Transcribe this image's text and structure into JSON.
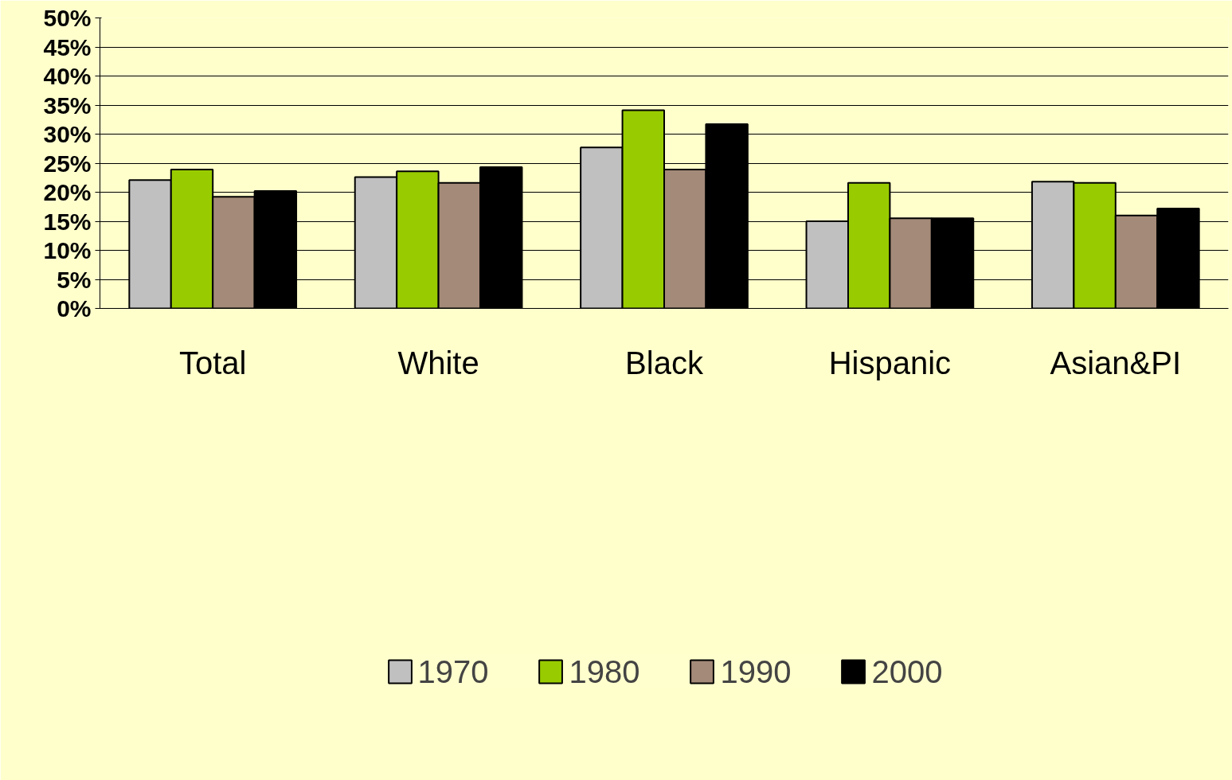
{
  "chart_data": {
    "type": "bar",
    "categories": [
      "Total",
      "White",
      "Black",
      "Hispanic",
      "Asian&PI"
    ],
    "series": [
      {
        "name": "1970",
        "color": "#c0c0c0",
        "values": [
          22.1,
          22.6,
          27.7,
          15.0,
          21.8
        ]
      },
      {
        "name": "1980",
        "color": "#99cc00",
        "values": [
          23.9,
          23.6,
          34.1,
          21.6,
          21.6
        ]
      },
      {
        "name": "1990",
        "color": "#a48a78",
        "values": [
          19.2,
          21.6,
          23.9,
          15.5,
          16.0
        ]
      },
      {
        "name": "2000",
        "color": "#000000",
        "values": [
          20.2,
          24.3,
          31.7,
          15.5,
          17.2
        ]
      }
    ],
    "ylim": [
      0,
      50
    ],
    "yticks": [
      {
        "value": 0,
        "label": "0%"
      },
      {
        "value": 5,
        "label": "5%"
      },
      {
        "value": 10,
        "label": "10%"
      },
      {
        "value": 15,
        "label": "15%"
      },
      {
        "value": 20,
        "label": "20%"
      },
      {
        "value": 25,
        "label": "25%"
      },
      {
        "value": 30,
        "label": "30%"
      },
      {
        "value": 35,
        "label": "35%"
      },
      {
        "value": 40,
        "label": "40%"
      },
      {
        "value": 45,
        "label": "45%"
      },
      {
        "value": 50,
        "label": "50%"
      }
    ],
    "grid": "y",
    "legend": "bottom"
  }
}
